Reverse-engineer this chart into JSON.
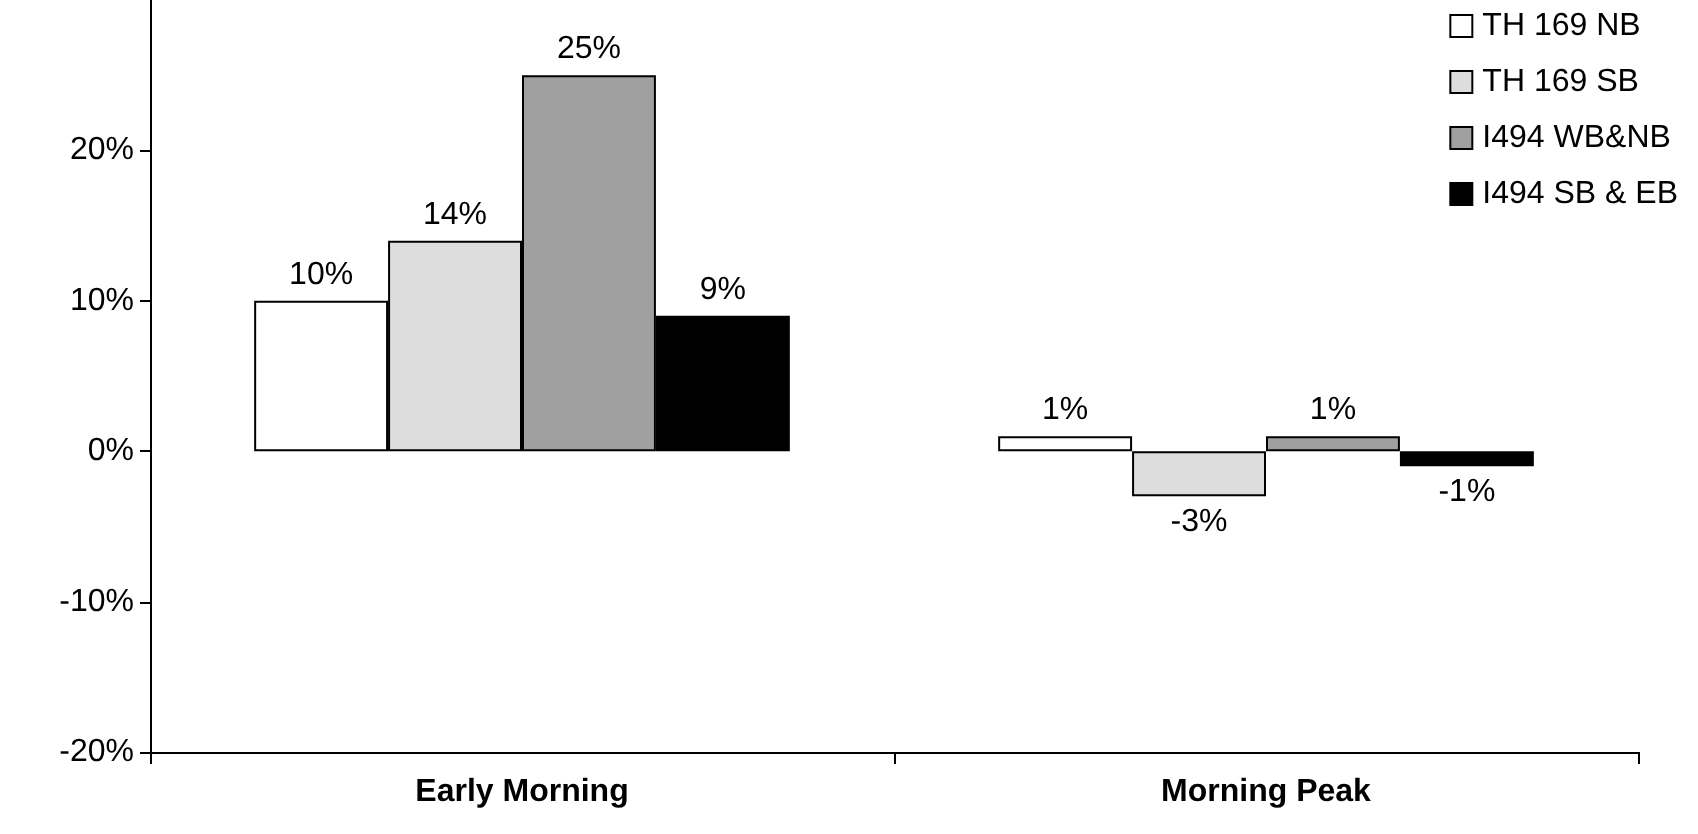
{
  "chart_data": {
    "type": "bar",
    "categories": [
      "Early Morning",
      "Morning Peak"
    ],
    "series": [
      {
        "name": "TH 169 NB",
        "color": "#ffffff",
        "values": [
          10,
          1
        ],
        "value_labels": [
          "10%",
          "1%"
        ]
      },
      {
        "name": "TH 169 SB",
        "color": "#dddddd",
        "values": [
          14,
          -3
        ],
        "value_labels": [
          "14%",
          "-3%"
        ]
      },
      {
        "name": "I494 WB&NB",
        "color": "#a0a0a0",
        "values": [
          25,
          1
        ],
        "value_labels": [
          "25%",
          "1%"
        ]
      },
      {
        "name": "I494 SB & EB",
        "color": "#000000",
        "values": [
          9,
          -1
        ],
        "value_labels": [
          "9%",
          "-1%"
        ]
      }
    ],
    "ylim": [
      -20,
      30
    ],
    "yticks": [
      {
        "value": -20,
        "label": "-20%"
      },
      {
        "value": -10,
        "label": "-10%"
      },
      {
        "value": 0,
        "label": "0%"
      },
      {
        "value": 10,
        "label": "10%"
      },
      {
        "value": 20,
        "label": "20%"
      }
    ],
    "grid": false,
    "legend": "top right"
  }
}
